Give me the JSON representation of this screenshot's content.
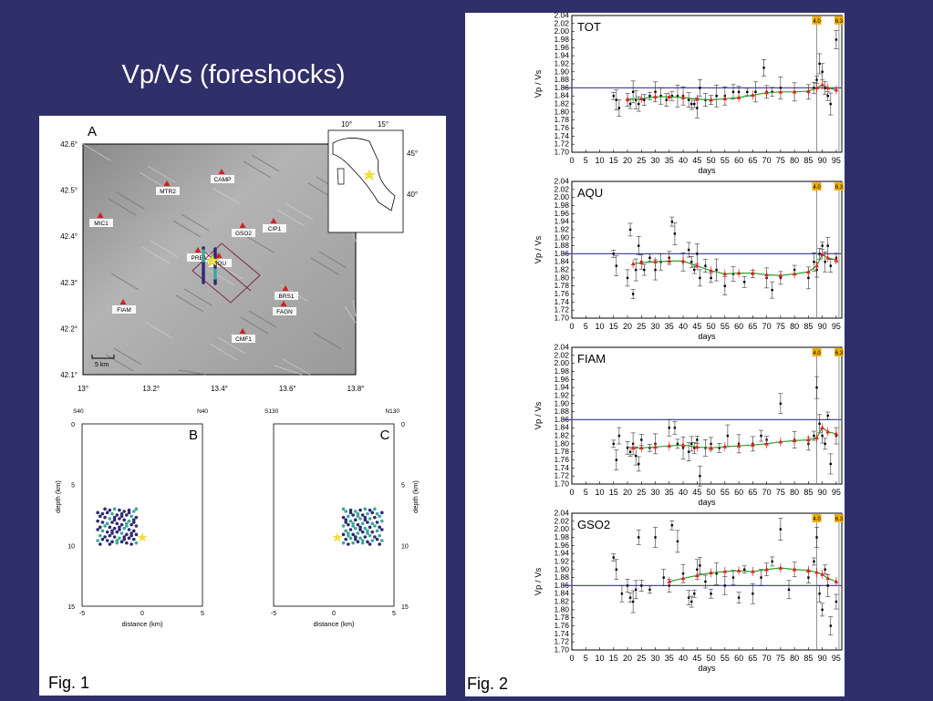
{
  "slide": {
    "title": "Vp/Vs (foreshocks)",
    "fig1_caption": "Fig. 1",
    "fig2_caption": "Fig. 2",
    "colors": {
      "background": "#2f2f6a",
      "foreshock_dark": "#2e2a73",
      "foreshock_teal": "#3aa89a",
      "mainshock": "#f0e040",
      "reference_line": "#4a4aa0",
      "smoothed": "#2aa02a",
      "average": "#e02020"
    }
  },
  "map": {
    "panel_label": "A",
    "lat_ticks": [
      "42.6°",
      "42.5°",
      "42.4°",
      "42.3°",
      "42.2°",
      "42.1°"
    ],
    "lon_ticks": [
      "13°",
      "13.2°",
      "13.4°",
      "13.6°",
      "13.8°"
    ],
    "scale_label": "5 km",
    "inset_lon_ticks": [
      "10°",
      "15°"
    ],
    "inset_lat_ticks": [
      "45°",
      "40°"
    ],
    "stations": [
      {
        "name": "CAMP"
      },
      {
        "name": "MTR2"
      },
      {
        "name": "MIC1"
      },
      {
        "name": "CIP1"
      },
      {
        "name": "GSO2"
      },
      {
        "name": "PRE1"
      },
      {
        "name": "AQU"
      },
      {
        "name": "BRS1"
      },
      {
        "name": "FAGN"
      },
      {
        "name": "FIAM"
      },
      {
        "name": "CMF1"
      }
    ]
  },
  "sections": [
    {
      "panel_label": "B",
      "left_end": "S40",
      "right_end": "N40",
      "xlabel": "distance (km)",
      "ylabel": "depth (km)",
      "x_ticks": [
        "-5",
        "0",
        "5"
      ],
      "y_ticks": [
        "0",
        "5",
        "10",
        "15"
      ]
    },
    {
      "panel_label": "C",
      "left_end": "S130",
      "right_end": "N130",
      "xlabel": "distance (km)",
      "ylabel": "depth (km)",
      "x_ticks": [
        "-5",
        "0",
        "5"
      ],
      "y_ticks": [
        "0",
        "5",
        "10",
        "15"
      ]
    }
  ],
  "chart_data": [
    {
      "type": "scatter",
      "station": "TOT",
      "ylabel": "Vp / Vs",
      "xlabel": "days",
      "xlim": [
        0,
        97
      ],
      "ylim": [
        1.7,
        2.04
      ],
      "reference_line": 1.86,
      "event_markers": [
        {
          "day": 88,
          "label": "4.0"
        },
        {
          "day": 96,
          "label": "6.3"
        }
      ],
      "x": [
        15,
        16,
        17,
        20,
        21,
        22,
        23,
        24,
        26,
        28,
        30,
        32,
        34,
        36,
        38,
        40,
        42,
        43,
        44,
        45,
        46,
        48,
        50,
        52,
        55,
        58,
        60,
        63,
        66,
        69,
        70,
        72,
        75,
        80,
        85,
        87,
        88,
        89,
        90,
        91,
        92,
        93,
        95
      ],
      "y": [
        1.84,
        1.83,
        1.81,
        1.83,
        1.82,
        1.85,
        1.83,
        1.82,
        1.83,
        1.84,
        1.85,
        1.84,
        1.83,
        1.84,
        1.84,
        1.84,
        1.83,
        1.82,
        1.82,
        1.81,
        1.86,
        1.83,
        1.83,
        1.84,
        1.84,
        1.85,
        1.85,
        1.85,
        1.85,
        1.91,
        1.85,
        1.85,
        1.86,
        1.85,
        1.85,
        1.86,
        1.88,
        1.92,
        1.9,
        1.86,
        1.84,
        1.82,
        1.98
      ],
      "smoothed": {
        "x": [
          20,
          25,
          30,
          35,
          40,
          45,
          50,
          55,
          60,
          65,
          70,
          75,
          80,
          85,
          88,
          90,
          92,
          95
        ],
        "y": [
          1.832,
          1.833,
          1.838,
          1.838,
          1.836,
          1.832,
          1.83,
          1.833,
          1.836,
          1.842,
          1.848,
          1.85,
          1.85,
          1.852,
          1.86,
          1.868,
          1.86,
          1.855
        ]
      }
    },
    {
      "type": "scatter",
      "station": "AQU",
      "ylabel": "Vp / Vs",
      "xlabel": "days",
      "xlim": [
        0,
        97
      ],
      "ylim": [
        1.7,
        2.04
      ],
      "reference_line": 1.86,
      "event_markers": [
        {
          "day": 88,
          "label": "4.0"
        },
        {
          "day": 96,
          "label": "6.3"
        }
      ],
      "x": [
        15,
        16,
        20,
        21,
        22,
        23,
        24,
        25,
        26,
        28,
        30,
        32,
        35,
        36,
        37,
        40,
        42,
        43,
        44,
        45,
        46,
        48,
        50,
        52,
        55,
        58,
        62,
        65,
        70,
        72,
        75,
        80,
        85,
        87,
        88,
        89,
        90,
        91,
        92,
        93,
        95
      ],
      "y": [
        1.86,
        1.83,
        1.8,
        1.92,
        1.76,
        1.82,
        1.88,
        1.84,
        1.82,
        1.85,
        1.82,
        1.84,
        1.85,
        1.94,
        1.91,
        1.84,
        1.87,
        1.84,
        1.82,
        1.86,
        1.8,
        1.83,
        1.8,
        1.82,
        1.78,
        1.81,
        1.79,
        1.81,
        1.8,
        1.77,
        1.8,
        1.82,
        1.8,
        1.84,
        1.82,
        1.86,
        1.88,
        1.84,
        1.88,
        1.83,
        1.85
      ],
      "smoothed": {
        "x": [
          22,
          25,
          30,
          35,
          40,
          45,
          50,
          55,
          60,
          65,
          70,
          75,
          80,
          85,
          88,
          90,
          92,
          95
        ],
        "y": [
          1.835,
          1.838,
          1.84,
          1.842,
          1.842,
          1.83,
          1.818,
          1.81,
          1.812,
          1.812,
          1.808,
          1.806,
          1.81,
          1.815,
          1.83,
          1.858,
          1.85,
          1.845
        ]
      }
    },
    {
      "type": "scatter",
      "station": "FIAM",
      "ylabel": "Vp / Vs",
      "xlabel": "days",
      "xlim": [
        0,
        97
      ],
      "ylim": [
        1.7,
        2.04
      ],
      "reference_line": 1.86,
      "event_markers": [
        {
          "day": 88,
          "label": "4.0"
        },
        {
          "day": 96,
          "label": "6.3"
        }
      ],
      "x": [
        15,
        16,
        17,
        20,
        21,
        22,
        23,
        24,
        25,
        28,
        30,
        35,
        37,
        38,
        40,
        42,
        43,
        44,
        45,
        46,
        48,
        50,
        53,
        56,
        60,
        65,
        68,
        70,
        75,
        80,
        85,
        87,
        88,
        89,
        90,
        91,
        92,
        93,
        95
      ],
      "y": [
        1.8,
        1.76,
        1.82,
        1.79,
        1.78,
        1.8,
        1.77,
        1.75,
        1.81,
        1.79,
        1.8,
        1.84,
        1.84,
        1.8,
        1.79,
        1.78,
        1.8,
        1.79,
        1.81,
        1.72,
        1.79,
        1.8,
        1.79,
        1.82,
        1.8,
        1.8,
        1.82,
        1.81,
        1.9,
        1.81,
        1.8,
        1.82,
        1.94,
        1.85,
        1.82,
        1.8,
        1.87,
        1.75,
        1.82
      ],
      "smoothed": {
        "x": [
          22,
          25,
          30,
          35,
          40,
          45,
          50,
          55,
          60,
          65,
          70,
          75,
          80,
          85,
          88,
          90,
          92,
          95
        ],
        "y": [
          1.79,
          1.79,
          1.792,
          1.795,
          1.797,
          1.792,
          1.79,
          1.793,
          1.795,
          1.797,
          1.8,
          1.805,
          1.808,
          1.81,
          1.815,
          1.84,
          1.83,
          1.825
        ]
      }
    },
    {
      "type": "scatter",
      "station": "GSO2",
      "ylabel": "Vp / Vs",
      "xlabel": "days",
      "xlim": [
        0,
        97
      ],
      "ylim": [
        1.7,
        2.04
      ],
      "reference_line": 1.86,
      "event_markers": [
        {
          "day": 88,
          "label": "4.0"
        },
        {
          "day": 96,
          "label": "6.3"
        }
      ],
      "x": [
        15,
        16,
        18,
        20,
        21,
        22,
        23,
        24,
        25,
        28,
        30,
        33,
        35,
        36,
        38,
        40,
        42,
        43,
        44,
        45,
        46,
        48,
        50,
        52,
        55,
        58,
        60,
        62,
        65,
        68,
        70,
        72,
        75,
        78,
        80,
        85,
        87,
        88,
        89,
        90,
        91,
        92,
        93,
        95
      ],
      "y": [
        1.93,
        1.9,
        1.84,
        1.86,
        1.83,
        1.82,
        1.85,
        1.98,
        1.86,
        1.85,
        1.98,
        1.88,
        1.86,
        2.01,
        1.97,
        1.89,
        1.83,
        1.82,
        1.84,
        1.9,
        1.91,
        1.87,
        1.84,
        1.89,
        1.86,
        1.88,
        1.83,
        1.9,
        1.84,
        1.88,
        1.9,
        1.92,
        2.0,
        1.85,
        1.9,
        1.88,
        1.92,
        1.98,
        1.84,
        1.8,
        1.9,
        1.86,
        1.76,
        1.82
      ],
      "smoothed": {
        "x": [
          35,
          40,
          45,
          50,
          55,
          60,
          65,
          70,
          75,
          80,
          85,
          88,
          90,
          92,
          95
        ],
        "y": [
          1.87,
          1.878,
          1.885,
          1.892,
          1.895,
          1.897,
          1.895,
          1.9,
          1.904,
          1.9,
          1.898,
          1.893,
          1.888,
          1.878,
          1.87
        ]
      }
    }
  ]
}
